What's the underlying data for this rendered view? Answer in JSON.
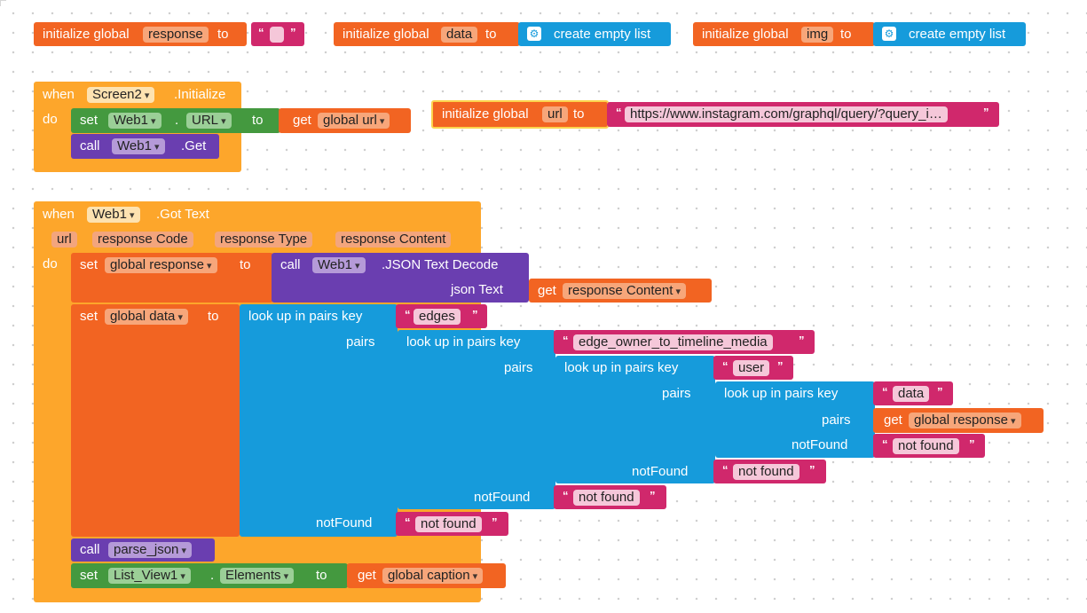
{
  "globals": {
    "response": {
      "kw": "initialize global",
      "name": "response",
      "to": "to"
    },
    "data": {
      "kw": "initialize global",
      "name": "data",
      "to": "to",
      "value": "create empty list"
    },
    "img": {
      "kw": "initialize global",
      "name": "img",
      "to": "to",
      "value": "create empty list"
    },
    "url": {
      "kw": "initialize global",
      "name": "url",
      "to": "to",
      "value": "https://www.instagram.com/graphql/query/?query_i…"
    }
  },
  "screen_init": {
    "when": "when",
    "component": "Screen2",
    "event": ".Initialize",
    "do": "do",
    "set_kw": "set",
    "set_comp": "Web1",
    "dot": ".",
    "set_prop": "URL",
    "to": "to",
    "get_kw": "get",
    "get_var": "global url",
    "call_kw": "call",
    "call_comp": "Web1",
    "call_method": ".Get"
  },
  "got_text": {
    "when": "when",
    "component": "Web1",
    "event": ".Got Text",
    "params": [
      "url",
      "response Code",
      "response Type",
      "response Content"
    ],
    "do": "do",
    "set1_kw": "set",
    "set1_var": "global response",
    "to": "to",
    "call_kw": "call",
    "call_comp": "Web1",
    "call_method": ".JSON Text Decode",
    "json_text": "json Text",
    "get_kw": "get",
    "get_var": "response Content",
    "set2_kw": "set",
    "set2_var": "global data",
    "lookup": "look up in pairs  key",
    "pairs": "pairs",
    "not_found_label": "notFound",
    "keys": [
      "edges",
      "edge_owner_to_timeline_media",
      "user",
      "data"
    ],
    "inner_get_var": "global response",
    "not_found_value": "not found",
    "call2_kw": "call",
    "call2_proc": "parse_json",
    "set3_kw": "set",
    "set3_comp": "List_View1",
    "set3_dot": ".",
    "set3_prop": "Elements",
    "set3_to": "to",
    "set3_get_kw": "get",
    "set3_get_var": "global caption"
  },
  "colors": {
    "orange": "#f26422",
    "yellow": "#fda62b",
    "green": "#44993f",
    "purple": "#6a3eb0",
    "blue": "#169bdb",
    "pink": "#d0286c"
  }
}
